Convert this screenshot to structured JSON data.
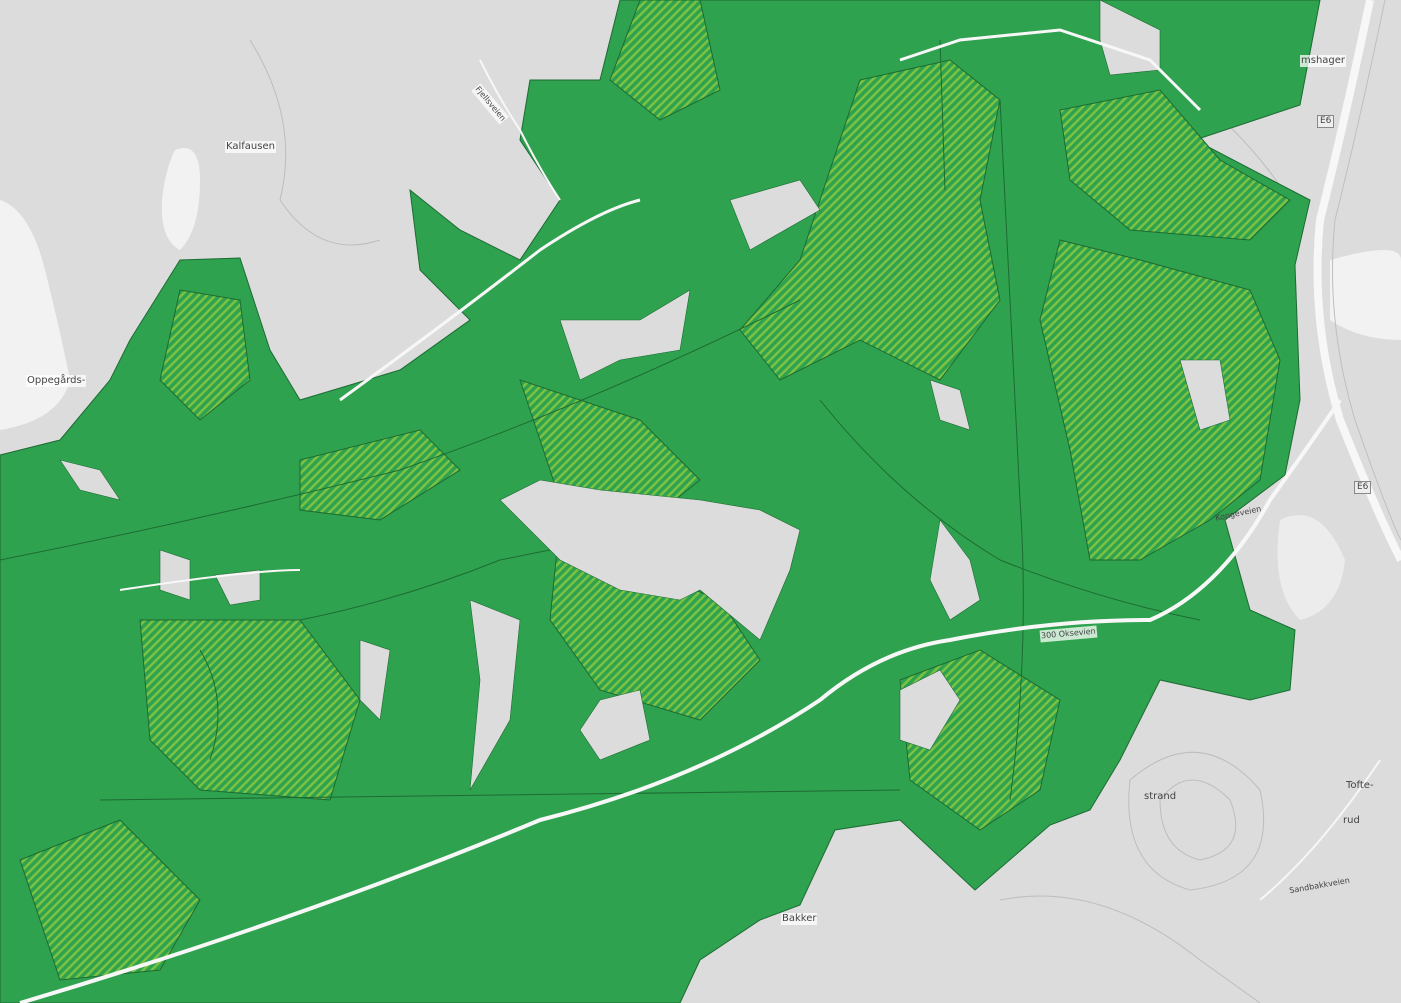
{
  "map": {
    "colors": {
      "background": "#dcdcdc",
      "water": "#f2f2f2",
      "forest_fill": "#2ea24e",
      "forest_hatch": "#7cc242",
      "boundary": "#1d6b33",
      "road": "#f7f7f7"
    },
    "place_labels": [
      {
        "id": "kalfausen",
        "text": "Kalfausen"
      },
      {
        "id": "oppegards",
        "text": "Oppegårds-"
      },
      {
        "id": "strand",
        "text": "strand"
      },
      {
        "id": "tofte",
        "text": "Tofte-"
      },
      {
        "id": "rud",
        "text": "rud"
      },
      {
        "id": "bakker",
        "text": "Bakker"
      },
      {
        "id": "hager",
        "text": "mshager"
      }
    ],
    "road_labels": [
      {
        "id": "road-north",
        "text": "Fjellsveien"
      },
      {
        "id": "road-oksevei",
        "text": "300 Oksevien"
      },
      {
        "id": "road-east",
        "text": "Kongeveien"
      },
      {
        "id": "road-south",
        "text": "Sandbakkveien"
      }
    ],
    "route_shields": [
      {
        "id": "e6-north",
        "text": "E6"
      },
      {
        "id": "e6-mid",
        "text": "E6"
      }
    ]
  }
}
